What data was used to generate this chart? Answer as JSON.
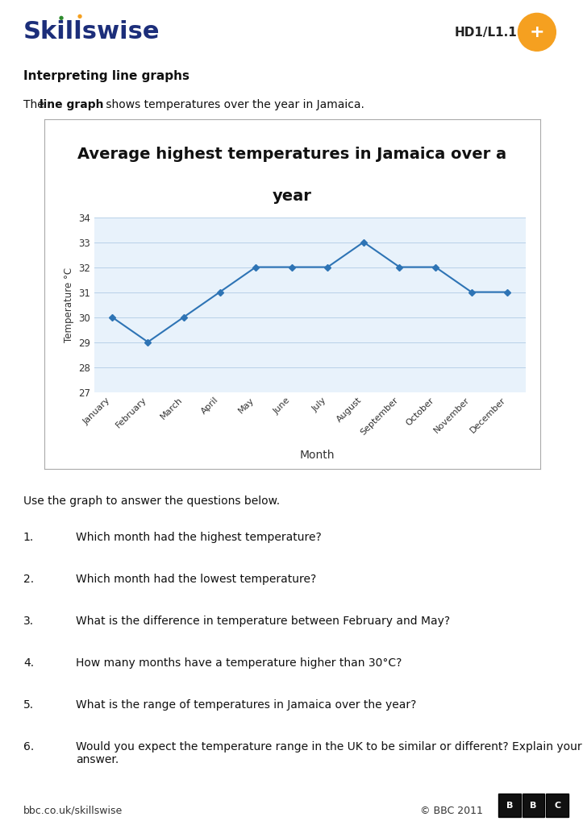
{
  "title_line1": "Average highest temperatures in Jamaica over a",
  "title_line2": "year",
  "months": [
    "January",
    "February",
    "March",
    "April",
    "May",
    "June",
    "July",
    "August",
    "September",
    "October",
    "November",
    "December"
  ],
  "temperatures": [
    30,
    29,
    30,
    31,
    32,
    32,
    32,
    33,
    32,
    32,
    31,
    31
  ],
  "ylabel": "Temperature °C",
  "xlabel": "Month",
  "ylim": [
    27,
    34
  ],
  "yticks": [
    27,
    28,
    29,
    30,
    31,
    32,
    33,
    34
  ],
  "line_color": "#2E74B5",
  "marker": "D",
  "marker_size": 4,
  "bg_color": "#E8F2FB",
  "grid_color": "#B8D0E8",
  "chart_border_color": "#AAAAAA",
  "page_bg": "#FFFFFF",
  "header_text": "Skillswise",
  "header_right": "HD1/L1.1",
  "section_title": "Interpreting line graphs",
  "questions_intro": "Use the graph to answer the questions below.",
  "questions": [
    "Which month had the highest temperature?",
    "Which month had the lowest temperature?",
    "What is the difference in temperature between February and May?",
    "How many months have a temperature higher than 30°C?",
    "What is the range of temperatures in Jamaica over the year?",
    "Would you expect the temperature range in the UK to be similar or different? Explain your answer."
  ],
  "footer_left": "bbc.co.uk/skillswise",
  "footer_right": "© BBC 2011",
  "skillswise_color": "#1C2E7A",
  "orange_color": "#F5A020",
  "green_color": "#2E8B2E",
  "header_line_color": "#2C3E7A"
}
